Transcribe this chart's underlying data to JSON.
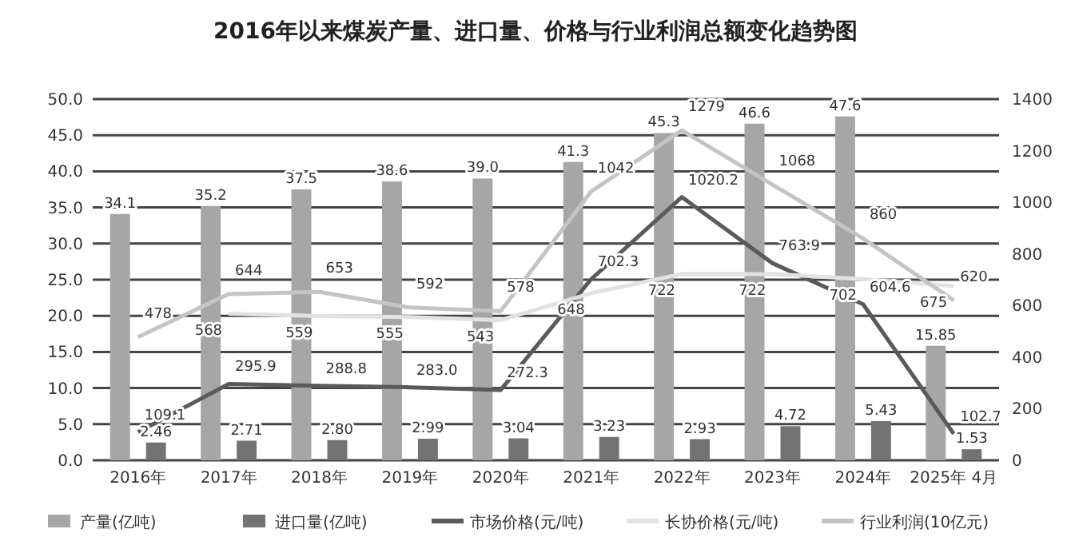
{
  "chart_data": {
    "type": "bar",
    "title": "2016年以来煤炭产量、进口量、价格与行业利润总额变化趋势图",
    "categories": [
      "2016年",
      "2017年",
      "2018年",
      "2019年",
      "2020年",
      "2021年",
      "2022年",
      "2023年",
      "2024年",
      "2025年 4月"
    ],
    "series": [
      {
        "name": "产量(亿吨)",
        "color": "#a6a6a6",
        "values": [
          34.1,
          35.2,
          37.5,
          38.6,
          39.0,
          41.3,
          45.3,
          46.6,
          47.6,
          15.85
        ],
        "value_labels": [
          "34.1",
          "35.2",
          "37.5",
          "38.6",
          "39.0",
          "41.3",
          "45.3",
          "46.6",
          "47.6",
          "15.85"
        ]
      },
      {
        "name": "进口量(亿吨)",
        "color": "#737373",
        "values": [
          2.46,
          2.71,
          2.8,
          2.99,
          3.04,
          3.23,
          2.93,
          4.72,
          5.43,
          1.53
        ],
        "value_labels": [
          "2.46",
          "2.71",
          "2.80",
          "2.99",
          "3.04",
          "3.23",
          "2.93",
          "4.72",
          "5.43",
          "1.53"
        ]
      },
      {
        "name": "市场价格(元/吨)",
        "type": "line",
        "axis": "y2",
        "color": "#5a5a5a",
        "values": [
          109.1,
          295.9,
          288.8,
          283.0,
          272.3,
          702.3,
          1020.2,
          763.9,
          604.6,
          102.7
        ],
        "value_labels": [
          "109.1",
          "295.9",
          "288.8",
          "283.0",
          "272.3",
          "702.3",
          "1020.2",
          "763.9",
          "604.6",
          "102.7"
        ]
      },
      {
        "name": "长协价格(元/吨)",
        "type": "line",
        "axis": "y2",
        "color": "#e2e2e2",
        "values": [
          null,
          568,
          559,
          555,
          543,
          648,
          722,
          722,
          702,
          675
        ],
        "value_labels": [
          null,
          "568",
          "559",
          "555",
          "543",
          "648",
          "722",
          "722",
          "702",
          "675"
        ]
      },
      {
        "name": "行业利润(10亿元)",
        "type": "line",
        "axis": "y2",
        "color": "#c4c4c4",
        "values": [
          478,
          644,
          653,
          592,
          578,
          1042,
          1279,
          1068,
          860,
          620
        ],
        "value_labels": [
          "478",
          "644",
          "653",
          "592",
          "578",
          "1042",
          "1279",
          "1068",
          "860",
          "620"
        ]
      }
    ],
    "ylim": [
      0,
      50
    ],
    "yticks": [
      {
        "value": 0,
        "label": "0.0"
      },
      {
        "value": 5,
        "label": "5.0"
      },
      {
        "value": 10,
        "label": "10.0"
      },
      {
        "value": 15,
        "label": "15.0"
      },
      {
        "value": 20,
        "label": "20.0"
      },
      {
        "value": 25,
        "label": "25.0"
      },
      {
        "value": 30,
        "label": "30.0"
      },
      {
        "value": 35,
        "label": "35.0"
      },
      {
        "value": 40,
        "label": "40.0"
      },
      {
        "value": 45,
        "label": "45.0"
      },
      {
        "value": 50,
        "label": "50.0"
      }
    ],
    "y2lim": [
      0,
      1400
    ],
    "y2ticks": [
      0,
      200,
      400,
      600,
      800,
      1000,
      1200,
      1400
    ],
    "grid": "y",
    "legend": "bottom"
  }
}
